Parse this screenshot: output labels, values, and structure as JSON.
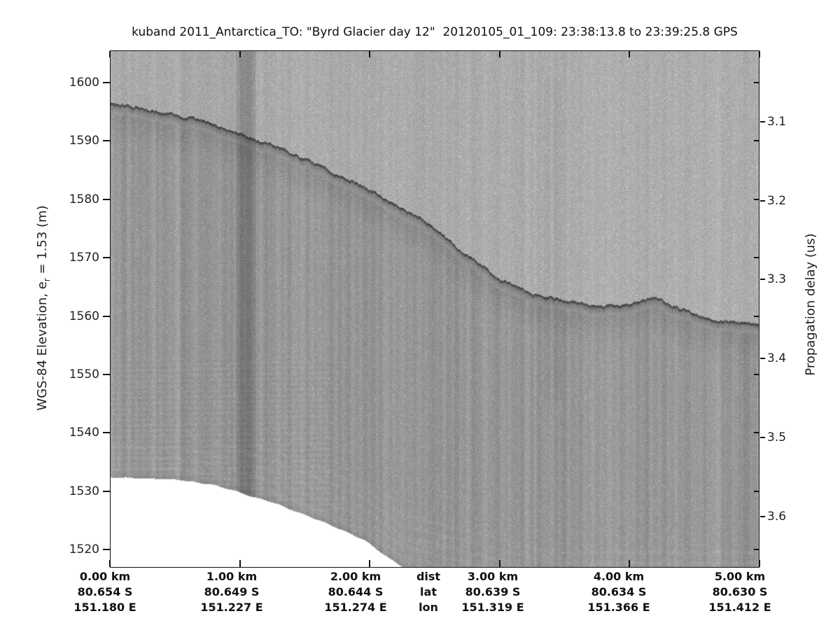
{
  "title": "kuband 2011_Antarctica_TO: \"Byrd Glacier day 12\"  20120105_01_109: 23:38:13.8 to 23:39:25.8 GPS",
  "axes": {
    "left_label_prefix": "WGS-84 Elevation, e",
    "left_label_sub": "r",
    "left_label_suffix": " = 1.53 (m)",
    "right_label": "Propagation delay (us)"
  },
  "colors": {
    "background": "#ffffff",
    "text": "#1a1a1a",
    "above_surface_gray": "#a9a9a9",
    "below_surface_gray": "#969696",
    "surface_line": "#3c3c3c",
    "dark_stripe": "#7d7d7d",
    "no_data": "#ffffff"
  },
  "chart_data": {
    "type": "heatmap",
    "subtype": "radar-echogram",
    "title": "kuband 2011_Antarctica_TO: \"Byrd Glacier day 12\"  20120105_01_109: 23:38:13.8 to 23:39:25.8 GPS",
    "y_left": {
      "label": "WGS-84 Elevation, e_r = 1.53 (m)",
      "units": "m",
      "ticks": [
        1600,
        1590,
        1580,
        1570,
        1560,
        1550,
        1540,
        1530,
        1520
      ],
      "range_top": 1605.5,
      "range_bottom": 1516.8
    },
    "y_right": {
      "label": "Propagation delay (us)",
      "units": "us",
      "ticks": [
        3.1,
        3.2,
        3.3,
        3.4,
        3.5,
        3.6
      ]
    },
    "x_axis": {
      "units": "km",
      "ticks_km": [
        0,
        1,
        2,
        3,
        4,
        5
      ],
      "range_km": [
        0,
        5
      ]
    },
    "bottom_axis": {
      "row_headers": [
        "dist",
        "lat",
        "lon"
      ],
      "columns": [
        {
          "dist": "0.00 km",
          "lat": "80.654 S",
          "lon": "151.180 E"
        },
        {
          "dist": "1.00 km",
          "lat": "80.649 S",
          "lon": "151.227 E"
        },
        {
          "dist": "2.00 km",
          "lat": "80.644 S",
          "lon": "151.274 E"
        },
        {
          "dist": "3.00 km",
          "lat": "80.639 S",
          "lon": "151.319 E"
        },
        {
          "dist": "4.00 km",
          "lat": "80.634 S",
          "lon": "151.366 E"
        },
        {
          "dist": "5.00 km",
          "lat": "80.630 S",
          "lon": "151.412 E"
        }
      ]
    },
    "surface_profile": {
      "x_km": [
        0.0,
        0.25,
        0.5,
        0.75,
        1.0,
        1.1,
        1.35,
        1.6,
        1.85,
        2.0,
        2.25,
        2.5,
        2.75,
        3.0,
        3.25,
        3.5,
        3.75,
        4.0,
        4.2,
        4.4,
        4.7,
        5.0
      ],
      "elevation_m": [
        1596.4,
        1595.6,
        1594.7,
        1593.2,
        1591.2,
        1590.4,
        1588.3,
        1586.0,
        1583.1,
        1581.6,
        1578.7,
        1575.0,
        1570.4,
        1566.5,
        1563.9,
        1562.6,
        1561.6,
        1562.1,
        1563.3,
        1561.1,
        1559.0,
        1558.4
      ]
    },
    "no_data_region": {
      "x_km": [
        0.0,
        0.52,
        0.79,
        0.97,
        1.1,
        1.24,
        1.42,
        1.6,
        1.78,
        1.96,
        2.14,
        2.27
      ],
      "top_elevation_m": [
        1532.4,
        1532.0,
        1531.1,
        1530.0,
        1529.0,
        1528.2,
        1526.6,
        1525.1,
        1523.4,
        1521.6,
        1518.6,
        1516.8
      ]
    },
    "features": {
      "dark_vertical_stripe_km": [
        0.97,
        1.11
      ],
      "faint_vertical_bands_km": [
        2.27,
        2.37,
        3.35,
        3.46,
        4.55
      ],
      "surface_reflection": "bright-to-dark interface descending left to right with local bump near 4.2 km"
    }
  }
}
